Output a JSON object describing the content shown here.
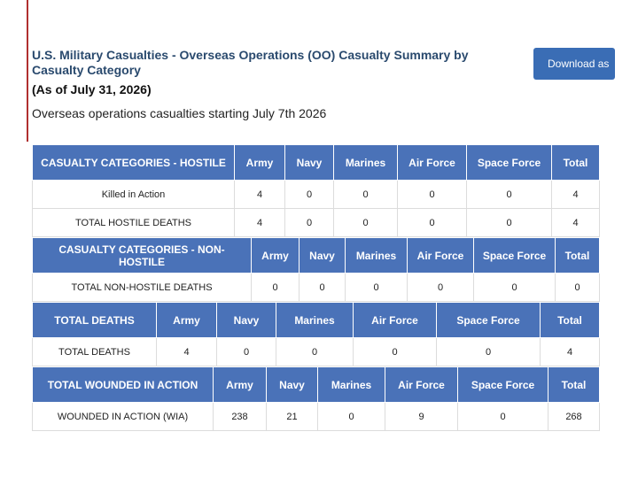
{
  "header": {
    "title": "U.S. Military Casualties - Overseas Operations (OO) Casualty Summary by Casualty Category",
    "as_of": "(As of July 31, 2026)",
    "subtitle": "Overseas operations casualties starting July 7th 2026",
    "download_label": "Download as"
  },
  "tables": {
    "hostile": {
      "heading": "CASUALTY CATEGORIES - HOSTILE",
      "columns": [
        "Army",
        "Navy",
        "Marines",
        "Air Force",
        "Space Force",
        "Total"
      ],
      "rows": [
        {
          "label": "Killed in Action",
          "values": [
            "4",
            "0",
            "0",
            "0",
            "0",
            "4"
          ]
        },
        {
          "label": "TOTAL HOSTILE DEATHS",
          "values": [
            "4",
            "0",
            "0",
            "0",
            "0",
            "4"
          ]
        }
      ]
    },
    "non_hostile": {
      "heading": "CASUALTY CATEGORIES - NON-HOSTILE",
      "columns": [
        "Army",
        "Navy",
        "Marines",
        "Air Force",
        "Space Force",
        "Total"
      ],
      "rows": [
        {
          "label": "TOTAL NON-HOSTILE DEATHS",
          "values": [
            "0",
            "0",
            "0",
            "0",
            "0",
            "0"
          ]
        }
      ]
    },
    "total_deaths": {
      "heading": "TOTAL DEATHS",
      "columns": [
        "Army",
        "Navy",
        "Marines",
        "Air Force",
        "Space Force",
        "Total"
      ],
      "rows": [
        {
          "label": "TOTAL DEATHS",
          "values": [
            "4",
            "0",
            "0",
            "0",
            "0",
            "4"
          ]
        }
      ]
    },
    "wounded": {
      "heading": "TOTAL WOUNDED IN ACTION",
      "columns": [
        "Army",
        "Navy",
        "Marines",
        "Air Force",
        "Space Force",
        "Total"
      ],
      "rows": [
        {
          "label": "WOUNDED IN ACTION (WIA)",
          "values": [
            "238",
            "21",
            "0",
            "9",
            "0",
            "268"
          ]
        }
      ]
    }
  }
}
